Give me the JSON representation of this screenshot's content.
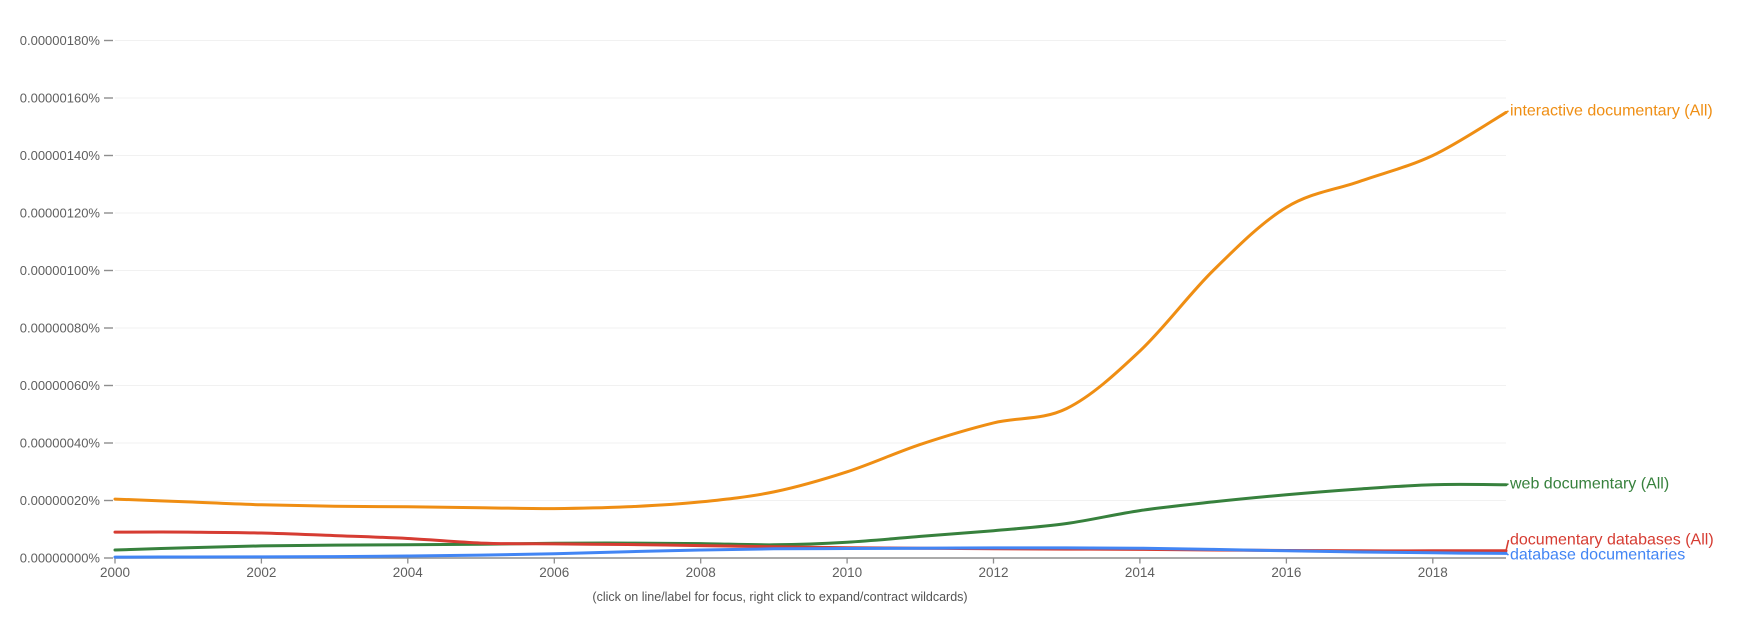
{
  "caption": "(click on line/label for focus, right click to expand/contract wildcards)",
  "colors": {
    "background": "#FFFFFF",
    "axis_text": "#5F5F5F",
    "axis_line": "#8E8E8E",
    "tick": "#8E8E8E",
    "gridline": "#F1F1F1",
    "series_orange": "#EF8E13",
    "series_green": "#37813D",
    "series_red": "#D63C32",
    "series_blue": "#4285F4"
  },
  "chart_data": {
    "type": "line",
    "title": "",
    "xlabel": "",
    "ylabel": "",
    "grid": "horizontal-only",
    "legend_position": "right-end-labels",
    "xlim": [
      2000,
      2019
    ],
    "ylim_percent": [
      0,
      1.9e-06
    ],
    "x": [
      2000,
      2001,
      2002,
      2003,
      2004,
      2005,
      2006,
      2007,
      2008,
      2009,
      2010,
      2011,
      2012,
      2013,
      2014,
      2015,
      2016,
      2017,
      2018,
      2019
    ],
    "xtick_labels": [
      "2000",
      "2002",
      "2004",
      "2006",
      "2008",
      "2010",
      "2012",
      "2014",
      "2016",
      "2018"
    ],
    "ytick_labels": [
      "0.00000000%",
      "0.00000020%",
      "0.00000040%",
      "0.00000060%",
      "0.00000080%",
      "0.00000100%",
      "0.00000120%",
      "0.00000140%",
      "0.00000160%",
      "0.00000180%"
    ],
    "y_unit": "percent of corpus",
    "series": [
      {
        "name": "interactive documentary (All)",
        "color": "#EF8E13",
        "values": [
          2.05e-07,
          1.95e-07,
          1.85e-07,
          1.8e-07,
          1.78e-07,
          1.75e-07,
          1.72e-07,
          1.78e-07,
          1.95e-07,
          2.3e-07,
          3e-07,
          3.95e-07,
          4.7e-07,
          5.2e-07,
          7.2e-07,
          1e-06,
          1.22e-06,
          1.31e-06,
          1.4e-06,
          1.55e-06
        ]
      },
      {
        "name": "web documentary (All)",
        "color": "#37813D",
        "values": [
          2.8e-08,
          3.6e-08,
          4.2e-08,
          4.5e-08,
          4.6e-08,
          4.8e-08,
          5.1e-08,
          5.2e-08,
          5e-08,
          4.6e-08,
          5.5e-08,
          7.5e-08,
          9.5e-08,
          1.2e-07,
          1.65e-07,
          1.95e-07,
          2.2e-07,
          2.4e-07,
          2.55e-07,
          2.55e-07
        ]
      },
      {
        "name": "documentary databases (All)",
        "color": "#D63C32",
        "values": [
          9e-08,
          9e-08,
          8.7e-08,
          7.8e-08,
          6.8e-08,
          5.2e-08,
          4.9e-08,
          4.7e-08,
          4.3e-08,
          3.9e-08,
          3.6e-08,
          3.4e-08,
          3.2e-08,
          3.1e-08,
          3e-08,
          2.8e-08,
          2.6e-08,
          2.5e-08,
          2.5e-08,
          2.5e-08
        ]
      },
      {
        "name": "database documentaries",
        "color": "#4285F4",
        "values": [
          3e-09,
          3.5e-09,
          4e-09,
          5e-09,
          7e-09,
          1e-08,
          1.5e-08,
          2.2e-08,
          2.8e-08,
          3.2e-08,
          3.3e-08,
          3.4e-08,
          3.5e-08,
          3.5e-08,
          3.4e-08,
          3e-08,
          2.5e-08,
          2.1e-08,
          1.8e-08,
          1.6e-08
        ]
      }
    ]
  }
}
